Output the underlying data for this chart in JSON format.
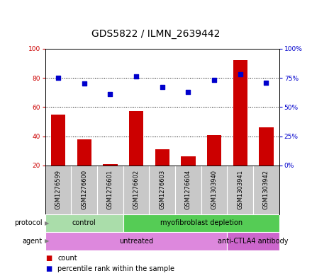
{
  "title": "GDS5822 / ILMN_2639442",
  "samples": [
    "GSM1276599",
    "GSM1276600",
    "GSM1276601",
    "GSM1276602",
    "GSM1276603",
    "GSM1276604",
    "GSM1303940",
    "GSM1303941",
    "GSM1303942"
  ],
  "bar_values": [
    55,
    38,
    21,
    57,
    31,
    26,
    41,
    92,
    46
  ],
  "dot_values": [
    75,
    70,
    61,
    76,
    67,
    63,
    73,
    78,
    71
  ],
  "left_ylim": [
    20,
    100
  ],
  "right_ylim": [
    0,
    100
  ],
  "left_yticks": [
    20,
    40,
    60,
    80,
    100
  ],
  "right_yticks": [
    0,
    25,
    50,
    75,
    100
  ],
  "right_yticklabels": [
    "0%",
    "25%",
    "50%",
    "75%",
    "100%"
  ],
  "bar_color": "#cc0000",
  "dot_color": "#0000cc",
  "sample_box_color": "#c8c8c8",
  "plot_bg_color": "#ffffff",
  "grid_color": "#000000",
  "protocol_groups": [
    {
      "label": "control",
      "start": 0,
      "end": 3,
      "color": "#aaddaa"
    },
    {
      "label": "myofibroblast depletion",
      "start": 3,
      "end": 9,
      "color": "#55cc55"
    }
  ],
  "agent_groups": [
    {
      "label": "untreated",
      "start": 0,
      "end": 7,
      "color": "#dd88dd"
    },
    {
      "label": "anti-CTLA4 antibody",
      "start": 7,
      "end": 9,
      "color": "#cc66cc"
    }
  ],
  "legend_items": [
    {
      "label": "count",
      "color": "#cc0000"
    },
    {
      "label": "percentile rank within the sample",
      "color": "#0000cc"
    }
  ],
  "title_fontsize": 10,
  "tick_fontsize": 6.5,
  "sample_fontsize": 6,
  "group_fontsize": 7,
  "legend_fontsize": 7,
  "left_label_color": "#cc0000",
  "right_label_color": "#0000cc"
}
